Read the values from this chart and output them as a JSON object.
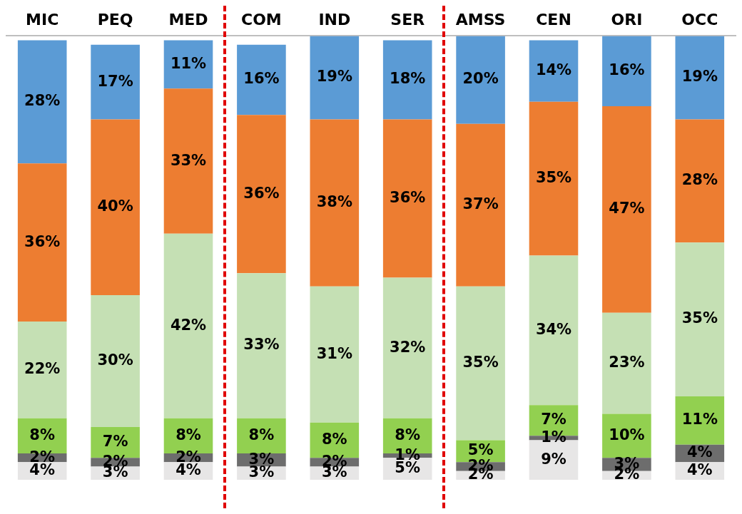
{
  "chart_data": {
    "type": "bar",
    "stacked": true,
    "categories": [
      "MIC",
      "PEQ",
      "MED",
      "COM",
      "IND",
      "SER",
      "AMSS",
      "CEN",
      "ORI",
      "OCC"
    ],
    "series": [
      {
        "color": "#e7e6e6",
        "values": [
          4,
          3,
          4,
          3,
          3,
          5,
          2,
          9,
          2,
          4
        ],
        "value_labels": [
          "4%",
          "3%",
          "4%",
          "3%",
          "3%",
          "5%",
          "2%",
          "9%",
          "2%",
          "4%"
        ]
      },
      {
        "color": "#6d6d6d",
        "values": [
          2,
          2,
          2,
          3,
          2,
          1,
          2,
          1,
          3,
          4
        ],
        "value_labels": [
          "2%",
          "2%",
          "2%",
          "3%",
          "2%",
          "1%",
          "2%",
          "1%",
          "3%",
          "4%"
        ]
      },
      {
        "color": "#92d050",
        "values": [
          8,
          7,
          8,
          8,
          8,
          8,
          5,
          7,
          10,
          11
        ],
        "value_labels": [
          "8%",
          "7%",
          "8%",
          "8%",
          "8%",
          "8%",
          "5%",
          "7%",
          "10%",
          "11%"
        ]
      },
      {
        "color": "#c5e0b4",
        "values": [
          22,
          30,
          42,
          33,
          31,
          32,
          35,
          34,
          23,
          35
        ],
        "value_labels": [
          "22%",
          "30%",
          "42%",
          "33%",
          "31%",
          "32%",
          "35%",
          "34%",
          "23%",
          "35%"
        ]
      },
      {
        "color": "#ed7d31",
        "values": [
          36,
          40,
          33,
          36,
          38,
          36,
          37,
          35,
          47,
          28
        ],
        "value_labels": [
          "36%",
          "40%",
          "33%",
          "36%",
          "38%",
          "36%",
          "37%",
          "35%",
          "47%",
          "28%"
        ]
      },
      {
        "color": "#5b9bd5",
        "values": [
          28,
          17,
          11,
          16,
          19,
          18,
          20,
          14,
          16,
          19
        ],
        "value_labels": [
          "28%",
          "17%",
          "11%",
          "16%",
          "19%",
          "18%",
          "20%",
          "14%",
          "16%",
          "19%"
        ]
      }
    ],
    "tick_labels": "x",
    "grid": false,
    "legend": false
  }
}
